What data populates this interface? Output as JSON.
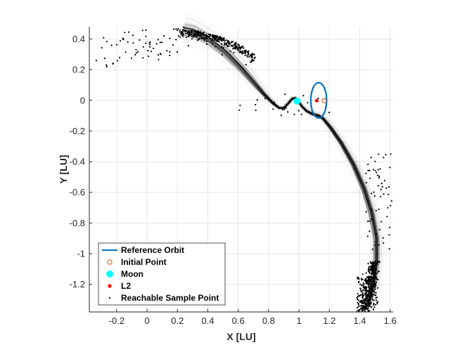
{
  "chart_data": {
    "type": "scatter",
    "xlabel": "X [LU]",
    "ylabel": "Y [LU]",
    "xlim": [
      -0.38,
      1.62
    ],
    "ylim": [
      -1.38,
      0.48
    ],
    "xticks": [
      -0.2,
      0,
      0.2,
      0.4,
      0.6,
      0.8,
      1,
      1.2,
      1.4,
      1.6
    ],
    "xtick_labels": [
      "-0.2",
      "0",
      "0.2",
      "0.4",
      "0.6",
      "0.8",
      "1",
      "1.2",
      "1.4",
      "1.6"
    ],
    "yticks": [
      0.4,
      0.2,
      0,
      -0.2,
      -0.4,
      -0.6,
      -0.8,
      -1,
      -1.2
    ],
    "ytick_labels": [
      "0.4",
      "0.2",
      "0",
      "-0.2",
      "-0.4",
      "-0.6",
      "-0.8",
      "-1",
      "-1.2"
    ],
    "grid": true,
    "legend_position": "bottom-left",
    "legend": [
      {
        "label": "Reference Orbit",
        "marker": "line",
        "color": "#0072BD"
      },
      {
        "label": "Initial Point",
        "marker": "open-circle",
        "color": "#D95319"
      },
      {
        "label": "Moon",
        "marker": "filled-circle-large",
        "color": "#00FFFF"
      },
      {
        "label": "L2",
        "marker": "filled-circle-small",
        "color": "#FF0000"
      },
      {
        "label": "Reachable Sample Point",
        "marker": "dot",
        "color": "#000000"
      }
    ],
    "moon": {
      "x": 0.988,
      "y": -0.005
    },
    "l2": {
      "x": 1.117,
      "y": -0.002
    },
    "initial_point": {
      "x": 1.166,
      "y": -0.002
    },
    "reference_orbit": {
      "center_x": 1.13,
      "center_y": 0.0,
      "half_width_x": 0.052,
      "half_height_y": 0.115
    },
    "bundle_path": [
      [
        0.24,
        0.46
      ],
      [
        0.3,
        0.45
      ],
      [
        0.4,
        0.4
      ],
      [
        0.52,
        0.31
      ],
      [
        0.62,
        0.21
      ],
      [
        0.7,
        0.12
      ],
      [
        0.77,
        0.04
      ],
      [
        0.83,
        -0.02
      ],
      [
        0.87,
        -0.05
      ],
      [
        0.9,
        -0.05
      ],
      [
        0.93,
        -0.02
      ],
      [
        0.955,
        0.01
      ],
      [
        0.975,
        0.015
      ],
      [
        0.995,
        -0.005
      ],
      [
        1.02,
        -0.04
      ],
      [
        1.05,
        -0.07
      ],
      [
        1.09,
        -0.09
      ],
      [
        1.13,
        -0.1
      ],
      [
        1.16,
        -0.12
      ],
      [
        1.21,
        -0.18
      ],
      [
        1.28,
        -0.28
      ],
      [
        1.36,
        -0.42
      ],
      [
        1.43,
        -0.58
      ],
      [
        1.48,
        -0.74
      ],
      [
        1.51,
        -0.9
      ],
      [
        1.51,
        -1.05
      ],
      [
        1.49,
        -1.2
      ],
      [
        1.46,
        -1.32
      ],
      [
        1.43,
        -1.36
      ]
    ],
    "bundle_spread": [
      0.04,
      0.035,
      0.03,
      0.027,
      0.022,
      0.018,
      0.012,
      0.008,
      0.006,
      0.006,
      0.006,
      0.006,
      0.006,
      0.006,
      0.006,
      0.007,
      0.008,
      0.008,
      0.009,
      0.011,
      0.013,
      0.015,
      0.017,
      0.018,
      0.018,
      0.017,
      0.016,
      0.015,
      0.015
    ],
    "sample_points": {
      "count": 900,
      "description": "dense clusters near (0.22..0.70, 0.32..0.46) and near (1.40..1.56, -1.05..-1.38), sparse outliers elsewhere"
    }
  },
  "colors": {
    "bundle": "#000000",
    "reference_orbit": "#0072BD",
    "moon": "#00FFFF",
    "l2": "#FF0000",
    "initial_point": "#D95319",
    "grid": "#e6e6e6",
    "axis": "#262626"
  }
}
